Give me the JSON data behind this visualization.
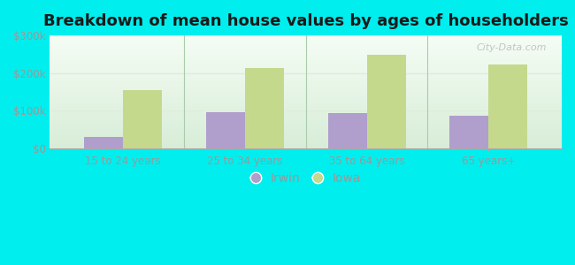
{
  "title": "Breakdown of mean house values by ages of householders",
  "categories": [
    "15 to 24 years",
    "25 to 34 years",
    "35 to 64 years",
    "65 years+"
  ],
  "irwin_values": [
    30000,
    95000,
    93000,
    87000
  ],
  "iowa_values": [
    155000,
    213000,
    248000,
    222000
  ],
  "irwin_color": "#b09fcc",
  "iowa_color": "#c5d98d",
  "background_color": "#00eeee",
  "ylim": [
    0,
    300000
  ],
  "yticks": [
    0,
    100000,
    200000,
    300000
  ],
  "ytick_labels": [
    "$0",
    "$100k",
    "$200k",
    "$300k"
  ],
  "bar_width": 0.32,
  "legend_labels": [
    "Irwin",
    "Iowa"
  ],
  "title_fontsize": 13,
  "tick_fontsize": 8.5,
  "legend_fontsize": 10,
  "watermark_text": "City-Data.com",
  "grid_color": "#ddeedb",
  "separator_color": "#aaccaa",
  "tick_color": "#999999",
  "spine_color": "#aaaaaa"
}
